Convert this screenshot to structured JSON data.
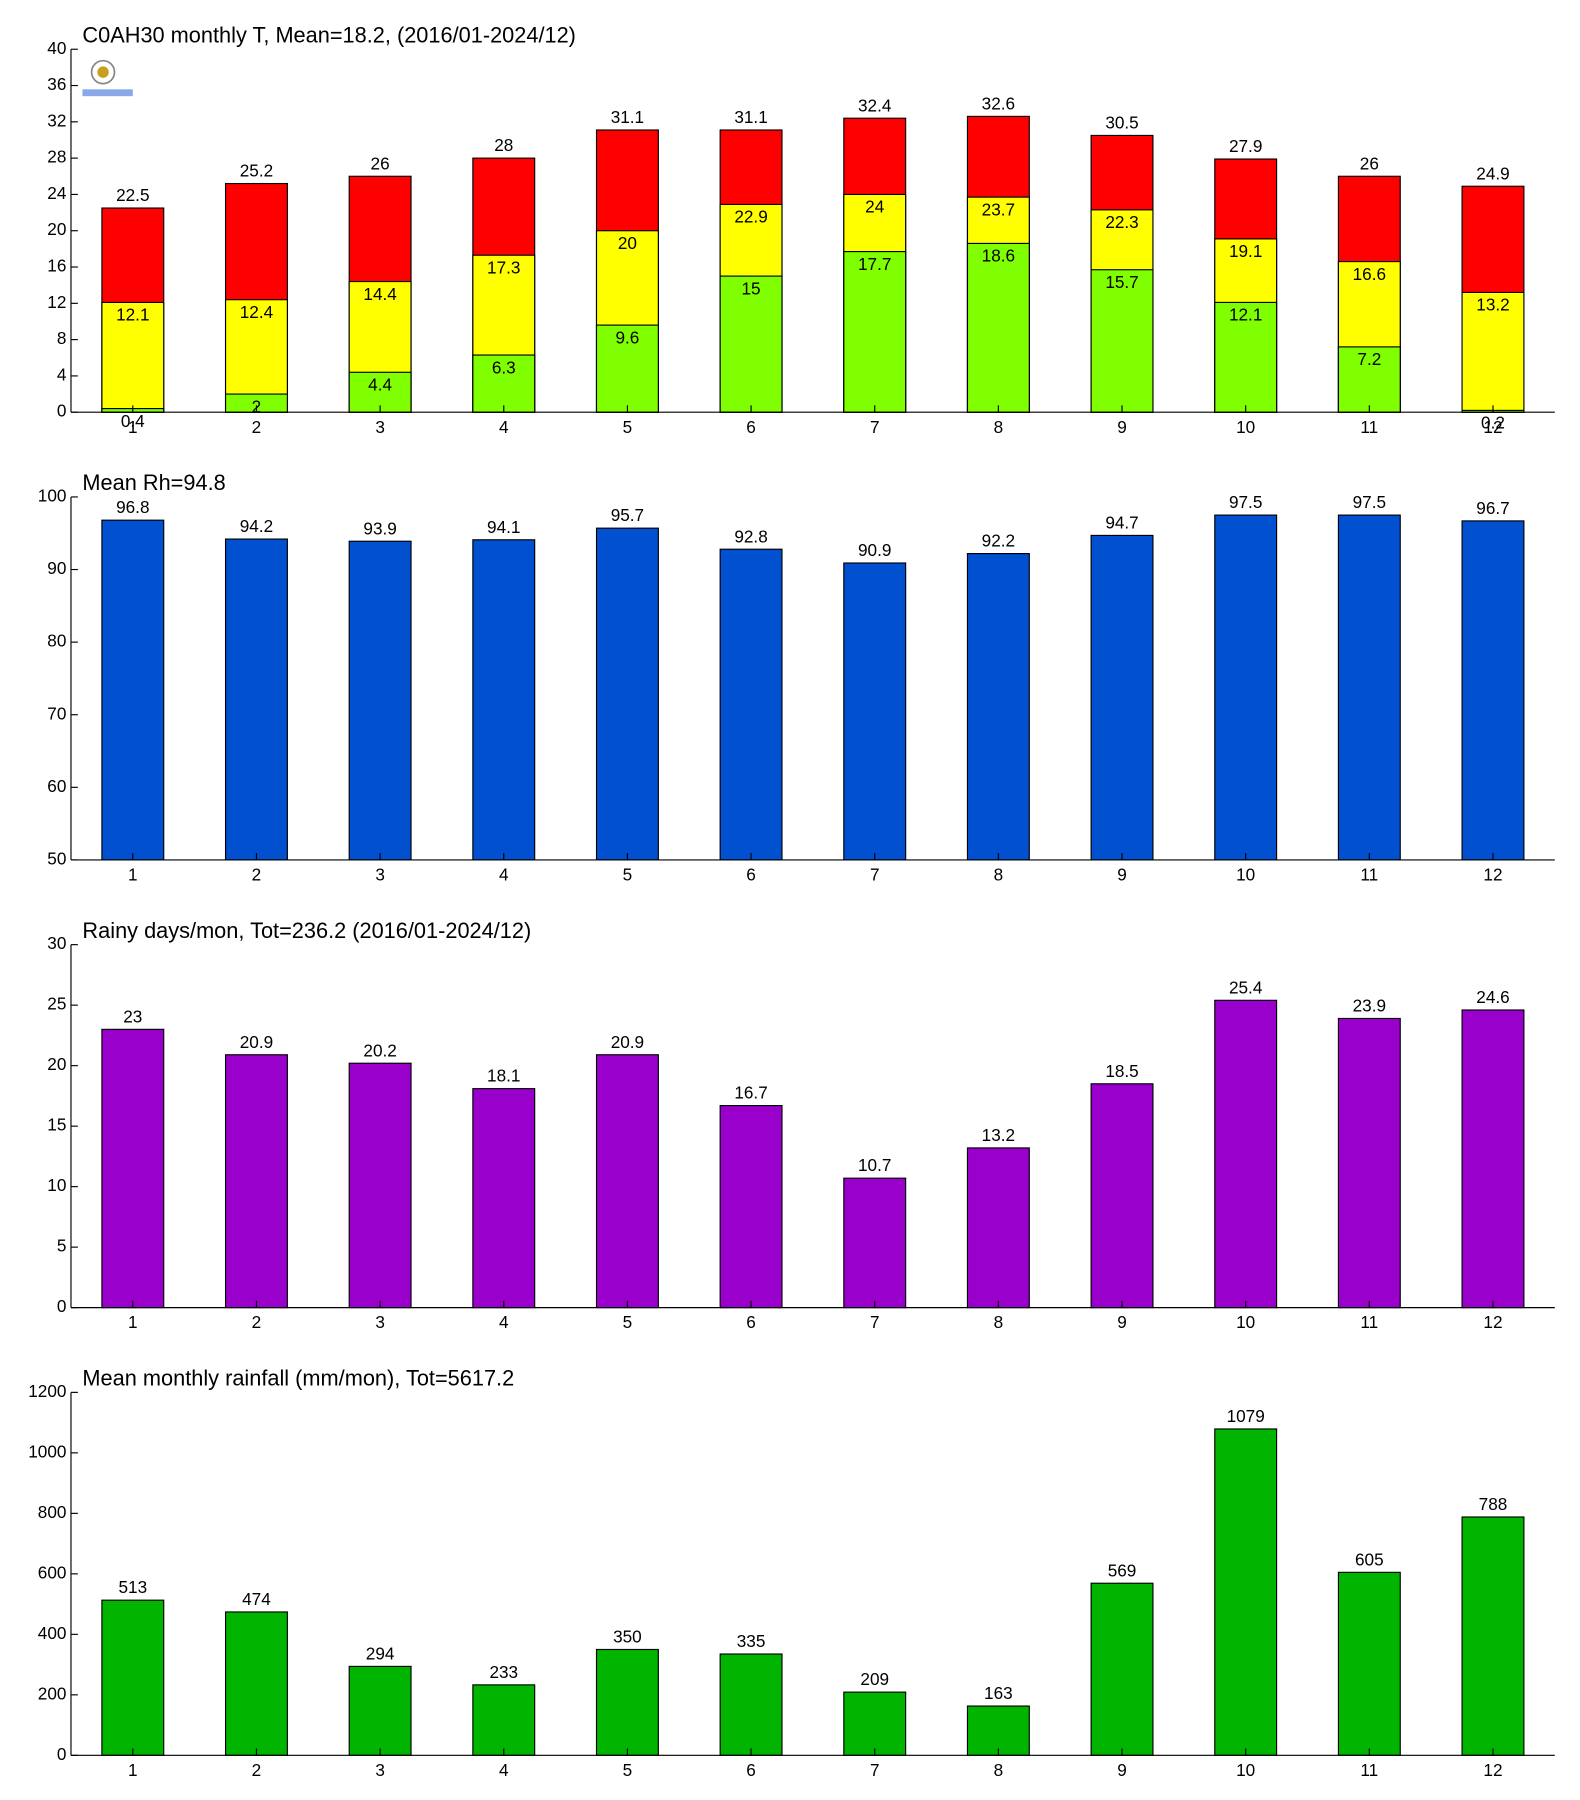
{
  "chart_data": [
    {
      "type": "bar",
      "overlap": true,
      "title": "C0AH30 monthly T, Mean=18.2, (2016/01-2024/12)",
      "categories": [
        "1",
        "2",
        "3",
        "4",
        "5",
        "6",
        "7",
        "8",
        "9",
        "10",
        "11",
        "12"
      ],
      "series": [
        {
          "color": "#ff0000",
          "values": [
            22.5,
            25.2,
            26,
            28,
            31.1,
            31.1,
            32.4,
            32.6,
            30.5,
            27.9,
            26,
            24.9
          ]
        },
        {
          "color": "#ffff00",
          "values": [
            12.1,
            12.4,
            14.4,
            17.3,
            20,
            22.9,
            24,
            23.7,
            22.3,
            19.1,
            16.6,
            13.2
          ]
        },
        {
          "color": "#80ff00",
          "values": [
            0.4,
            2,
            4.4,
            6.3,
            9.6,
            15,
            17.7,
            18.6,
            15.7,
            12.1,
            7.2,
            0.2
          ]
        }
      ],
      "ylim": [
        0,
        40
      ],
      "yticks": [
        0,
        4,
        8,
        12,
        16,
        20,
        24,
        28,
        32,
        36,
        40
      ]
    },
    {
      "type": "bar",
      "title": "Mean Rh=94.8",
      "categories": [
        "1",
        "2",
        "3",
        "4",
        "5",
        "6",
        "7",
        "8",
        "9",
        "10",
        "11",
        "12"
      ],
      "series": [
        {
          "color": "#0050d0",
          "values": [
            96.8,
            94.2,
            93.9,
            94.1,
            95.7,
            92.8,
            90.9,
            92.2,
            94.7,
            97.5,
            97.5,
            96.7
          ]
        }
      ],
      "ylim": [
        50,
        100
      ],
      "yticks": [
        50,
        60,
        70,
        80,
        90,
        100
      ]
    },
    {
      "type": "bar",
      "title": "Rainy days/mon, Tot=236.2 (2016/01-2024/12)",
      "categories": [
        "1",
        "2",
        "3",
        "4",
        "5",
        "6",
        "7",
        "8",
        "9",
        "10",
        "11",
        "12"
      ],
      "series": [
        {
          "color": "#9900cc",
          "values": [
            23,
            20.9,
            20.2,
            18.1,
            20.9,
            16.7,
            10.7,
            13.2,
            18.5,
            25.4,
            23.9,
            24.6
          ]
        }
      ],
      "ylim": [
        0,
        30
      ],
      "yticks": [
        0,
        5,
        10,
        15,
        20,
        25,
        30
      ]
    },
    {
      "type": "bar",
      "title": "Mean monthly rainfall (mm/mon), Tot=5617.2",
      "categories": [
        "1",
        "2",
        "3",
        "4",
        "5",
        "6",
        "7",
        "8",
        "9",
        "10",
        "11",
        "12"
      ],
      "series": [
        {
          "color": "#00b400",
          "values": [
            513,
            474,
            294,
            233,
            350,
            335,
            209,
            163,
            569,
            1079,
            605,
            788
          ]
        }
      ],
      "ylim": [
        0,
        1200
      ],
      "yticks": [
        0,
        200,
        400,
        600,
        800,
        1000,
        1200
      ]
    }
  ]
}
